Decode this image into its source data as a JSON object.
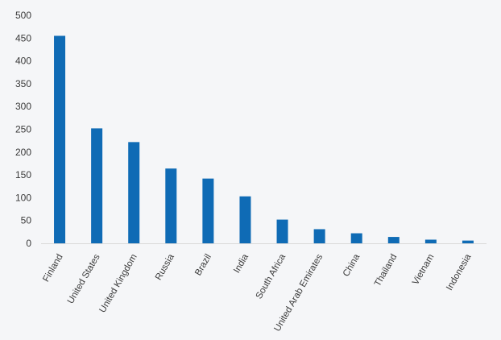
{
  "chart_data": {
    "type": "bar",
    "categories": [
      "Finland",
      "United States",
      "United Kingdom",
      "Russia",
      "Brazil",
      "India",
      "South Africa",
      "United Arab Emirates",
      "China",
      "Thailand",
      "Vietnam",
      "Indonesia"
    ],
    "values": [
      455,
      252,
      222,
      164,
      142,
      103,
      52,
      31,
      22,
      14,
      8,
      6
    ],
    "title": "",
    "xlabel": "",
    "ylabel": "",
    "ylim": [
      0,
      500
    ],
    "yticks": [
      0,
      50,
      100,
      150,
      200,
      250,
      300,
      350,
      400,
      450,
      500
    ],
    "grid": false,
    "legend": "none",
    "bar_color": "#0f6bb5",
    "axis_color": "#d9d9d9",
    "background": "#f5f6f8"
  }
}
